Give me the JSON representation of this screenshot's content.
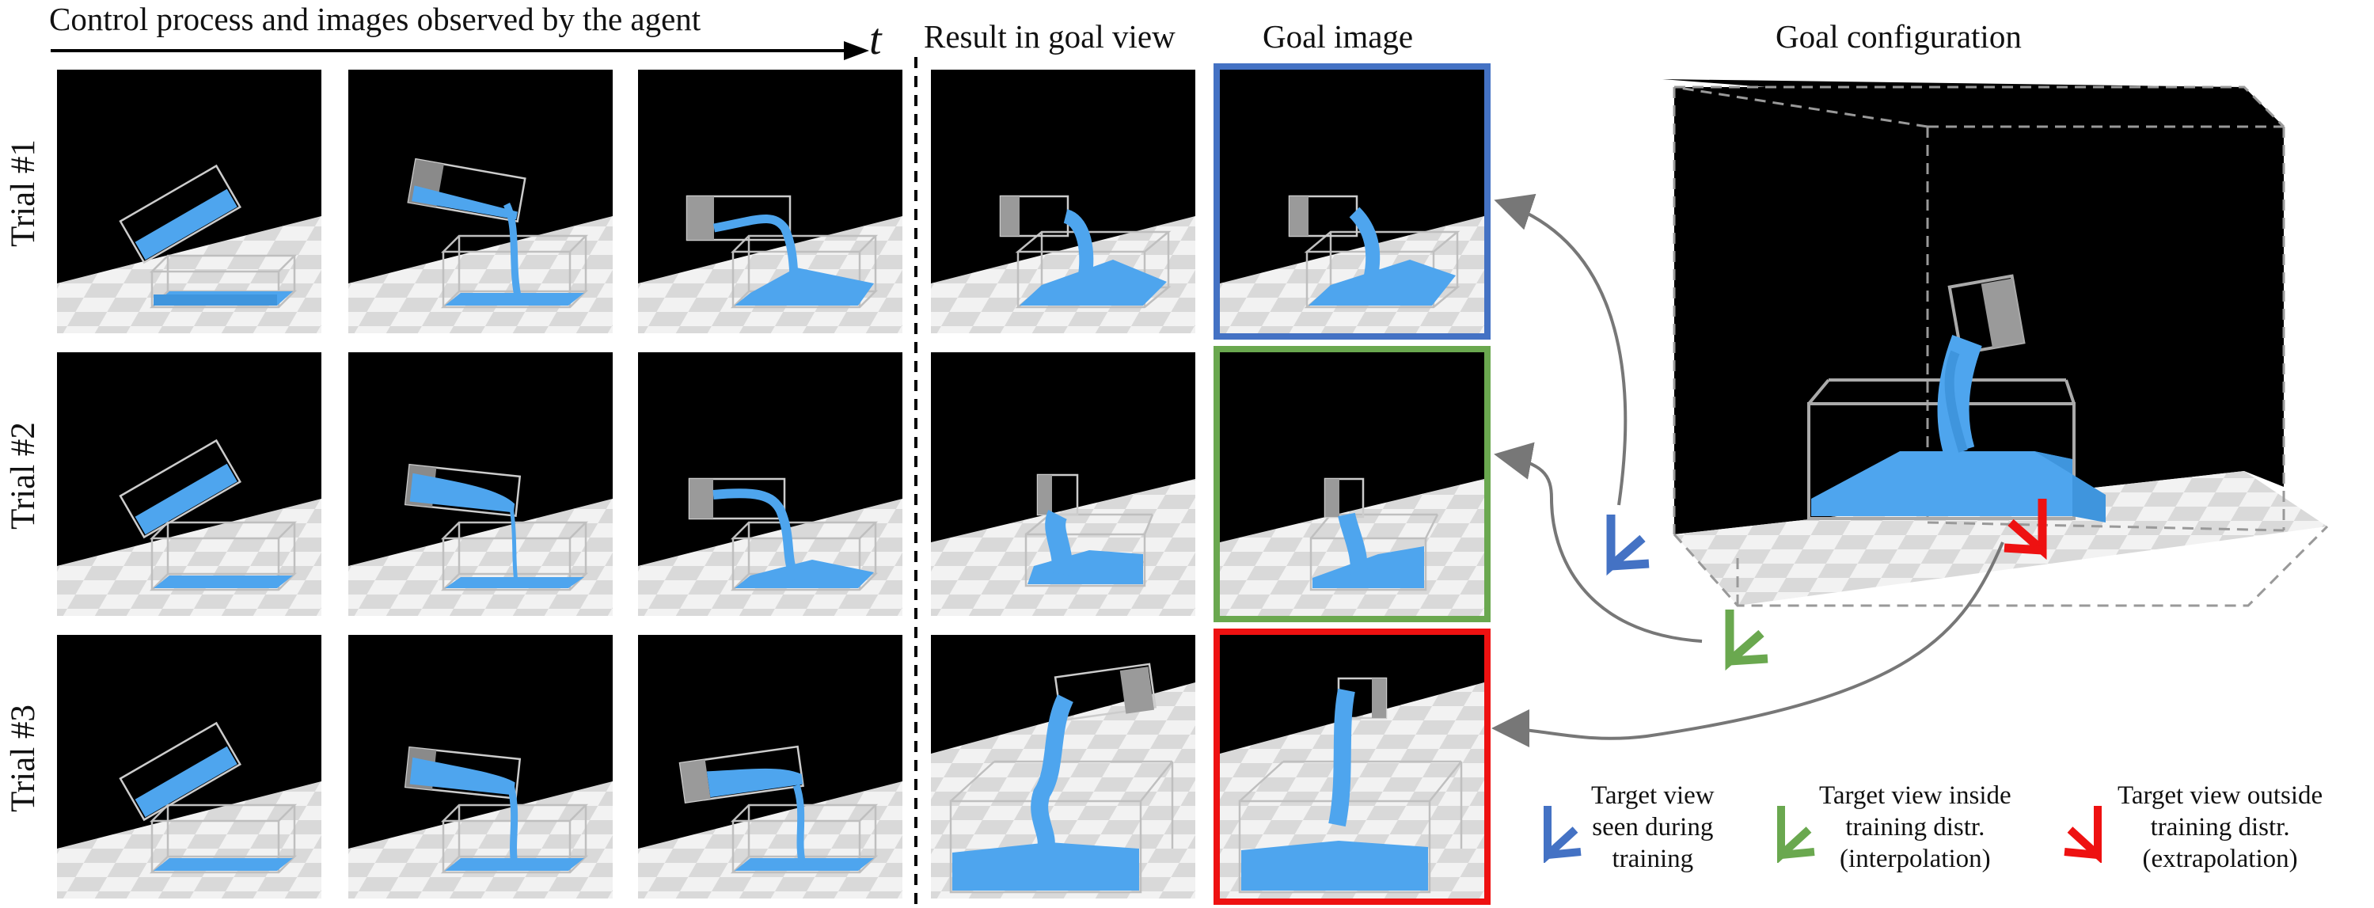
{
  "headers": {
    "process": "Control process and images observed by the agent",
    "time_symbol": "t",
    "result": "Result in goal view",
    "goal_image": "Goal image",
    "goal_config": "Goal configuration"
  },
  "trials": [
    {
      "label": "Trial #1",
      "frame_color": "#4472c4"
    },
    {
      "label": "Trial #2",
      "frame_color": "#6aa84f"
    },
    {
      "label": "Trial #3",
      "frame_color": "#ee1111"
    }
  ],
  "legend": [
    {
      "text_lines": [
        "Target view",
        "seen during",
        "training"
      ],
      "icon": "blue-camera-icon",
      "color": "#4472c4"
    },
    {
      "text_lines": [
        "Target view inside",
        "training distr.",
        "(interpolation)"
      ],
      "icon": "green-camera-icon",
      "color": "#6aa84f"
    },
    {
      "text_lines": [
        "Target view outside",
        "training distr.",
        "(extrapolation)"
      ],
      "icon": "red-camera-icon",
      "color": "#ee1111"
    }
  ],
  "colors": {
    "liquid": "#4ea5ee",
    "blue": "#4472c4",
    "green": "#6aa84f",
    "red": "#ee1111",
    "arrow": "#777777"
  }
}
